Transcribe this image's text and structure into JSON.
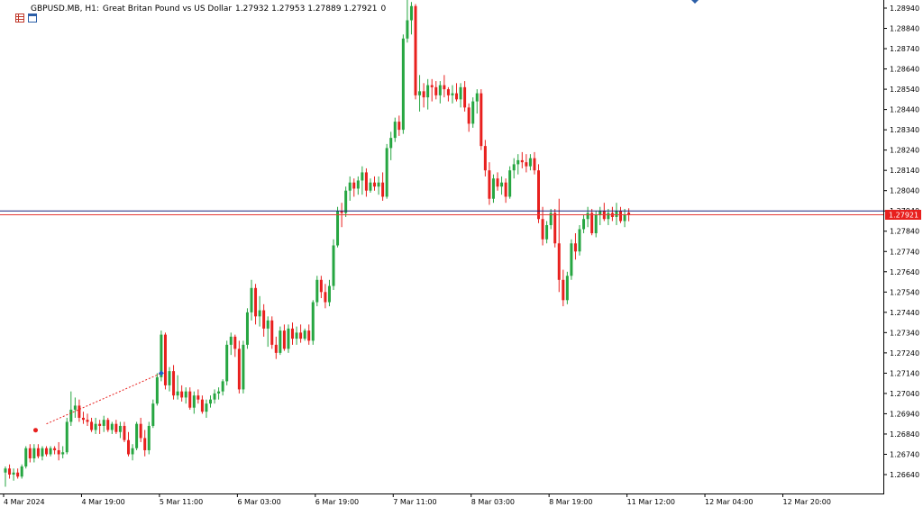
{
  "header": {
    "symbol": "GBPUSD.MB, H1:",
    "description": "Great Britan Pound vs US Dollar",
    "ohlc": "1.27932 1.27953 1.27889 1.27921",
    "extra": "0"
  },
  "icons": [
    "chart-grid-icon",
    "chart-window-icon"
  ],
  "colors": {
    "bull": "#26a641",
    "bear": "#e8201e",
    "bid_line": "#1a237e",
    "ask_line": "#e53935",
    "price_tag": "#e8201e",
    "trend_line": "#e8201e",
    "marker": "#1e63c8"
  },
  "current_price_label": "1.27921",
  "chart_data": {
    "type": "candlestick",
    "timeframe": "H1",
    "y_axis": {
      "min": 1.2654,
      "max": 1.2904,
      "ticks": [
        "1.28940",
        "1.28840",
        "1.28740",
        "1.28640",
        "1.28540",
        "1.28440",
        "1.28340",
        "1.28240",
        "1.28140",
        "1.28040",
        "1.27940",
        "1.27840",
        "1.27740",
        "1.27640",
        "1.27540",
        "1.27440",
        "1.27340",
        "1.27240",
        "1.27140",
        "1.27040",
        "1.26940",
        "1.26840",
        "1.26740",
        "1.26640"
      ]
    },
    "x_axis": {
      "labels": [
        "4 Mar 2024",
        "4 Mar 19:00",
        "5 Mar 11:00",
        "6 Mar 03:00",
        "6 Mar 19:00",
        "7 Mar 11:00",
        "8 Mar 03:00",
        "8 Mar 19:00",
        "11 Mar 12:00",
        "12 Mar 04:00",
        "12 Mar 20:00"
      ],
      "label_bar_index": [
        0,
        19,
        38,
        57,
        76,
        95,
        114,
        133,
        152,
        171,
        190
      ]
    },
    "bid_price": 1.27921,
    "ask_price": 1.2794,
    "candles": [
      [
        1.2665,
        1.2668,
        1.2658,
        1.2667
      ],
      [
        1.2667,
        1.2669,
        1.2662,
        1.2664
      ],
      [
        1.2664,
        1.2667,
        1.2661,
        1.2665
      ],
      [
        1.2665,
        1.2667,
        1.2662,
        1.2663
      ],
      [
        1.2663,
        1.2669,
        1.2662,
        1.2668
      ],
      [
        1.2668,
        1.2678,
        1.2667,
        1.2677
      ],
      [
        1.2677,
        1.2679,
        1.267,
        1.2672
      ],
      [
        1.2672,
        1.2679,
        1.267,
        1.2677
      ],
      [
        1.2677,
        1.2679,
        1.2672,
        1.2673
      ],
      [
        1.2673,
        1.2678,
        1.2671,
        1.2677
      ],
      [
        1.2677,
        1.2678,
        1.2673,
        1.2674
      ],
      [
        1.2674,
        1.2678,
        1.2673,
        1.2677
      ],
      [
        1.2677,
        1.2678,
        1.2674,
        1.2676
      ],
      [
        1.2676,
        1.268,
        1.2671,
        1.2674
      ],
      [
        1.2674,
        1.2678,
        1.2672,
        1.2675
      ],
      [
        1.2675,
        1.2692,
        1.2674,
        1.269
      ],
      [
        1.269,
        1.2705,
        1.2688,
        1.2696
      ],
      [
        1.2696,
        1.2702,
        1.2692,
        1.2698
      ],
      [
        1.2698,
        1.2701,
        1.269,
        1.2692
      ],
      [
        1.2692,
        1.2695,
        1.2689,
        1.2691
      ],
      [
        1.2691,
        1.2694,
        1.2688,
        1.269
      ],
      [
        1.269,
        1.2692,
        1.2685,
        1.2686
      ],
      [
        1.2686,
        1.2692,
        1.2684,
        1.2689
      ],
      [
        1.2689,
        1.2691,
        1.2684,
        1.2688
      ],
      [
        1.2688,
        1.2693,
        1.2685,
        1.2691
      ],
      [
        1.2691,
        1.2692,
        1.2685,
        1.2686
      ],
      [
        1.2686,
        1.269,
        1.2684,
        1.2689
      ],
      [
        1.2689,
        1.2691,
        1.2684,
        1.2685
      ],
      [
        1.2685,
        1.269,
        1.2682,
        1.2688
      ],
      [
        1.2688,
        1.269,
        1.268,
        1.2681
      ],
      [
        1.2681,
        1.2685,
        1.2673,
        1.2674
      ],
      [
        1.2674,
        1.2679,
        1.2671,
        1.2677
      ],
      [
        1.2677,
        1.269,
        1.2676,
        1.2689
      ],
      [
        1.2689,
        1.2692,
        1.268,
        1.2682
      ],
      [
        1.2682,
        1.2686,
        1.2673,
        1.2676
      ],
      [
        1.2676,
        1.269,
        1.2674,
        1.2688
      ],
      [
        1.2688,
        1.2701,
        1.2687,
        1.2699
      ],
      [
        1.2699,
        1.2714,
        1.2698,
        1.2712
      ],
      [
        1.2712,
        1.2735,
        1.271,
        1.2733
      ],
      [
        1.2733,
        1.2734,
        1.2706,
        1.2708
      ],
      [
        1.2708,
        1.2717,
        1.2705,
        1.2715
      ],
      [
        1.2715,
        1.2718,
        1.2701,
        1.2703
      ],
      [
        1.2703,
        1.2713,
        1.2701,
        1.2705
      ],
      [
        1.2705,
        1.2708,
        1.27,
        1.2702
      ],
      [
        1.2702,
        1.2707,
        1.2699,
        1.2705
      ],
      [
        1.2705,
        1.2707,
        1.2696,
        1.2697
      ],
      [
        1.2697,
        1.2705,
        1.2694,
        1.2703
      ],
      [
        1.2703,
        1.2706,
        1.2699,
        1.2701
      ],
      [
        1.2701,
        1.2703,
        1.2694,
        1.2695
      ],
      [
        1.2695,
        1.2701,
        1.2692,
        1.2699
      ],
      [
        1.2699,
        1.2703,
        1.2697,
        1.2701
      ],
      [
        1.2701,
        1.2706,
        1.2699,
        1.2704
      ],
      [
        1.2704,
        1.2707,
        1.2701,
        1.2705
      ],
      [
        1.2705,
        1.2711,
        1.2703,
        1.271
      ],
      [
        1.271,
        1.273,
        1.2708,
        1.2728
      ],
      [
        1.2728,
        1.2734,
        1.2723,
        1.2732
      ],
      [
        1.2732,
        1.2733,
        1.2722,
        1.2726
      ],
      [
        1.2726,
        1.273,
        1.2704,
        1.2706
      ],
      [
        1.2706,
        1.273,
        1.2704,
        1.2728
      ],
      [
        1.2728,
        1.2746,
        1.2726,
        1.2744
      ],
      [
        1.2744,
        1.276,
        1.274,
        1.2756
      ],
      [
        1.2756,
        1.2758,
        1.2738,
        1.2742
      ],
      [
        1.2742,
        1.2752,
        1.2737,
        1.2745
      ],
      [
        1.2745,
        1.2748,
        1.2732,
        1.2736
      ],
      [
        1.2736,
        1.2742,
        1.2727,
        1.274
      ],
      [
        1.274,
        1.2742,
        1.2726,
        1.2728
      ],
      [
        1.2728,
        1.2732,
        1.2721,
        1.2724
      ],
      [
        1.2724,
        1.2737,
        1.2723,
        1.2735
      ],
      [
        1.2735,
        1.2738,
        1.2725,
        1.2726
      ],
      [
        1.2726,
        1.2738,
        1.2724,
        1.2736
      ],
      [
        1.2736,
        1.2739,
        1.2728,
        1.2731
      ],
      [
        1.2731,
        1.2737,
        1.2728,
        1.2734
      ],
      [
        1.2734,
        1.2738,
        1.2729,
        1.2731
      ],
      [
        1.2731,
        1.2736,
        1.273,
        1.2735
      ],
      [
        1.2735,
        1.2738,
        1.2728,
        1.273
      ],
      [
        1.273,
        1.275,
        1.2728,
        1.2749
      ],
      [
        1.2749,
        1.2762,
        1.2747,
        1.276
      ],
      [
        1.276,
        1.2762,
        1.2751,
        1.2754
      ],
      [
        1.2754,
        1.2758,
        1.2746,
        1.2749
      ],
      [
        1.2749,
        1.276,
        1.2747,
        1.2757
      ],
      [
        1.2757,
        1.278,
        1.2755,
        1.2777
      ],
      [
        1.2777,
        1.2796,
        1.2776,
        1.2794
      ],
      [
        1.2794,
        1.2798,
        1.2786,
        1.2793
      ],
      [
        1.2793,
        1.2806,
        1.2791,
        1.2804
      ],
      [
        1.2804,
        1.2811,
        1.2799,
        1.2808
      ],
      [
        1.2808,
        1.281,
        1.2801,
        1.2805
      ],
      [
        1.2805,
        1.2811,
        1.2802,
        1.2809
      ],
      [
        1.2809,
        1.2816,
        1.2802,
        1.2813
      ],
      [
        1.2813,
        1.2815,
        1.2801,
        1.2804
      ],
      [
        1.2804,
        1.281,
        1.2803,
        1.2808
      ],
      [
        1.2808,
        1.2811,
        1.2804,
        1.2806
      ],
      [
        1.2806,
        1.2811,
        1.2802,
        1.2808
      ],
      [
        1.2808,
        1.2813,
        1.2799,
        1.2801
      ],
      [
        1.2801,
        1.2827,
        1.28,
        1.2825
      ],
      [
        1.2825,
        1.2833,
        1.2819,
        1.283
      ],
      [
        1.283,
        1.284,
        1.2828,
        1.2838
      ],
      [
        1.2838,
        1.2841,
        1.2831,
        1.2834
      ],
      [
        1.2834,
        1.2881,
        1.2832,
        1.2879
      ],
      [
        1.2879,
        1.2904,
        1.2877,
        1.2888
      ],
      [
        1.2888,
        1.2897,
        1.2881,
        1.2895
      ],
      [
        1.2895,
        1.2896,
        1.2849,
        1.2851
      ],
      [
        1.2851,
        1.2861,
        1.2843,
        1.2853
      ],
      [
        1.2853,
        1.2857,
        1.2845,
        1.285
      ],
      [
        1.285,
        1.2859,
        1.2844,
        1.2856
      ],
      [
        1.2856,
        1.2859,
        1.2848,
        1.2855
      ],
      [
        1.2855,
        1.2858,
        1.2849,
        1.2851
      ],
      [
        1.2851,
        1.2858,
        1.2847,
        1.2856
      ],
      [
        1.2856,
        1.2861,
        1.285,
        1.2854
      ],
      [
        1.2854,
        1.2855,
        1.2848,
        1.2851
      ],
      [
        1.2851,
        1.2856,
        1.2847,
        1.2852
      ],
      [
        1.2852,
        1.2857,
        1.2848,
        1.2849
      ],
      [
        1.2849,
        1.2857,
        1.2845,
        1.2855
      ],
      [
        1.2855,
        1.2858,
        1.2843,
        1.2845
      ],
      [
        1.2845,
        1.2847,
        1.2833,
        1.2837
      ],
      [
        1.2837,
        1.285,
        1.2835,
        1.2848
      ],
      [
        1.2848,
        1.2854,
        1.2842,
        1.2852
      ],
      [
        1.2852,
        1.2854,
        1.2824,
        1.2826
      ],
      [
        1.2826,
        1.2829,
        1.2811,
        1.2814
      ],
      [
        1.2814,
        1.2818,
        1.2797,
        1.28
      ],
      [
        1.28,
        1.2812,
        1.2798,
        1.281
      ],
      [
        1.281,
        1.2813,
        1.2804,
        1.2806
      ],
      [
        1.2806,
        1.2811,
        1.2802,
        1.2808
      ],
      [
        1.2808,
        1.281,
        1.2798,
        1.2801
      ],
      [
        1.2801,
        1.2816,
        1.28,
        1.2814
      ],
      [
        1.2814,
        1.282,
        1.281,
        1.2817
      ],
      [
        1.2817,
        1.2822,
        1.2812,
        1.2819
      ],
      [
        1.2819,
        1.2823,
        1.2815,
        1.2818
      ],
      [
        1.2818,
        1.2822,
        1.2813,
        1.2816
      ],
      [
        1.2816,
        1.2822,
        1.2814,
        1.282
      ],
      [
        1.282,
        1.2823,
        1.2812,
        1.2814
      ],
      [
        1.2814,
        1.2817,
        1.2788,
        1.279
      ],
      [
        1.279,
        1.2796,
        1.2777,
        1.278
      ],
      [
        1.278,
        1.2789,
        1.2778,
        1.2787
      ],
      [
        1.2787,
        1.2795,
        1.2785,
        1.2793
      ],
      [
        1.2793,
        1.2795,
        1.2776,
        1.2778
      ],
      [
        1.2778,
        1.28,
        1.2754,
        1.276
      ],
      [
        1.276,
        1.2765,
        1.2747,
        1.275
      ],
      [
        1.275,
        1.2764,
        1.2748,
        1.2762
      ],
      [
        1.2762,
        1.278,
        1.276,
        1.2778
      ],
      [
        1.2778,
        1.2783,
        1.277,
        1.2774
      ],
      [
        1.2774,
        1.2787,
        1.2772,
        1.2785
      ],
      [
        1.2785,
        1.2792,
        1.2783,
        1.279
      ],
      [
        1.279,
        1.2796,
        1.2786,
        1.2793
      ],
      [
        1.2793,
        1.2795,
        1.2782,
        1.2783
      ],
      [
        1.2783,
        1.2794,
        1.2781,
        1.2792
      ],
      [
        1.2792,
        1.2796,
        1.2787,
        1.2794
      ],
      [
        1.2794,
        1.2798,
        1.2789,
        1.279
      ],
      [
        1.279,
        1.2795,
        1.2787,
        1.2793
      ],
      [
        1.2793,
        1.2796,
        1.2789,
        1.2791
      ],
      [
        1.2791,
        1.2798,
        1.2787,
        1.2794
      ],
      [
        1.2794,
        1.2796,
        1.2788,
        1.2789
      ],
      [
        1.2789,
        1.2795,
        1.2786,
        1.2792
      ],
      [
        1.27932,
        1.27953,
        1.27889,
        1.27921
      ]
    ],
    "trend_line": {
      "from_bar": 10,
      "from_price": 1.2689,
      "to_bar": 30,
      "to_price": 1.2714
    }
  }
}
